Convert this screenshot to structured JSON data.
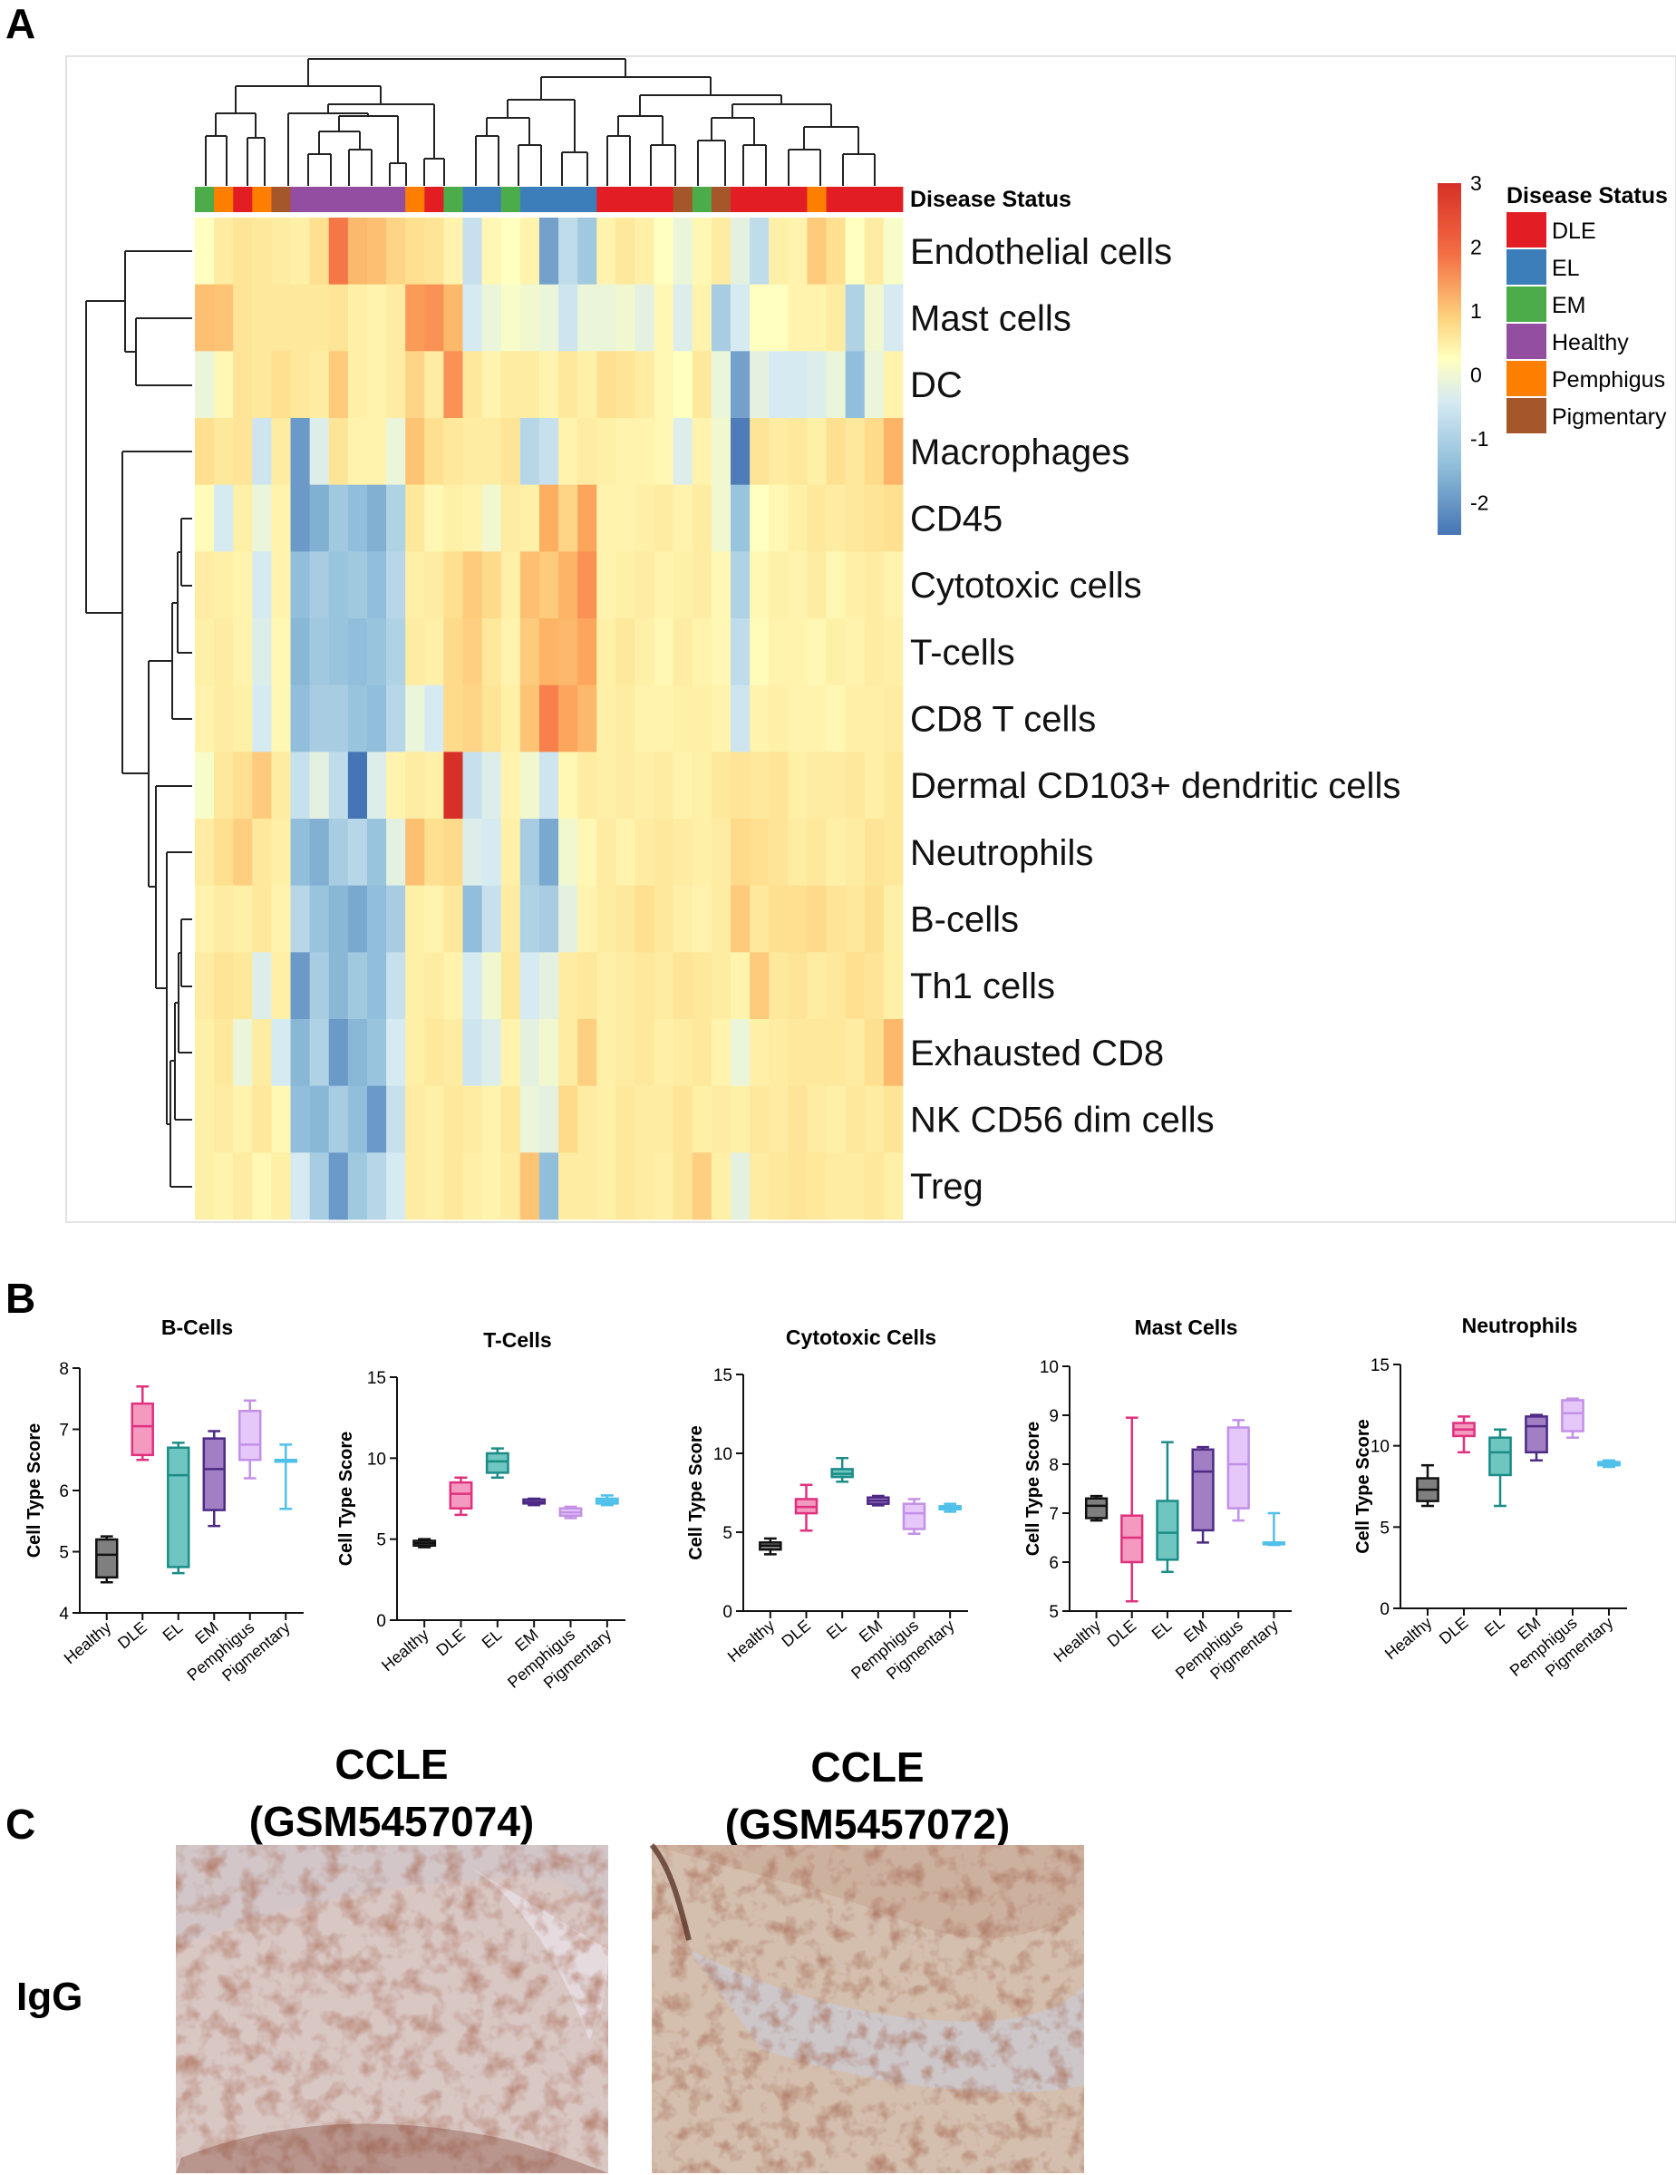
{
  "panels": {
    "a": "A",
    "b": "B",
    "c": "C"
  },
  "chart_data": [
    {
      "type": "heatmap",
      "annotation_label": "Disease Status",
      "rows": [
        "Endothelial cells",
        "Mast cells",
        "DC",
        "Macrophages",
        "CD45",
        "Cytotoxic cells",
        "T-cells",
        "CD8 T cells",
        "Dermal CD103+ dendritic cells",
        "Neutrophils",
        "B-cells",
        "Th1 cells",
        "Exhausted CD8",
        "NK CD56 dim cells",
        "Treg"
      ],
      "column_groups": [
        "EM",
        "Pemphigus",
        "DLE",
        "Pemphigus",
        "Pigmentary",
        "Healthy",
        "Healthy",
        "Healthy",
        "Healthy",
        "Healthy",
        "Healthy",
        "Pemphigus",
        "DLE",
        "EM",
        "EL",
        "EL",
        "EM",
        "EL",
        "EL",
        "EL",
        "EL",
        "DLE",
        "DLE",
        "DLE",
        "DLE",
        "Pigmentary",
        "EM",
        "Pigmentary",
        "DLE",
        "DLE",
        "DLE",
        "DLE",
        "Pemphigus",
        "DLE",
        "DLE",
        "DLE",
        "DLE"
      ],
      "values": [
        [
          0,
          0.5,
          0.7,
          0.6,
          0.5,
          0.4,
          0.8,
          2.3,
          1.5,
          1.4,
          1,
          0.8,
          0.7,
          0.3,
          -0.8,
          0.2,
          0,
          0.3,
          -1.9,
          -0.9,
          -1.3,
          0.3,
          0.6,
          0.4,
          0,
          -0.3,
          0.2,
          0.5,
          -0.4,
          -0.9,
          0.4,
          0.3,
          1.2,
          0.8,
          0,
          0.5,
          -0.1
        ],
        [
          1.4,
          1.3,
          0.7,
          0.6,
          0.6,
          0.6,
          0.6,
          0.7,
          0.4,
          0.3,
          0.5,
          1.9,
          2,
          1.5,
          -0.6,
          -0.3,
          -0.1,
          -0.2,
          -0.3,
          -0.7,
          -0.3,
          -0.3,
          -0.2,
          -0.4,
          0.2,
          -0.5,
          0.3,
          -1.2,
          -0.6,
          0,
          0,
          0.3,
          0.3,
          0.5,
          -1.1,
          -0.2,
          -0.6
        ],
        [
          -0.3,
          0.2,
          0.7,
          0.6,
          0.8,
          0.6,
          0.5,
          1.2,
          0.4,
          0.3,
          0.5,
          1,
          0.5,
          2,
          0.6,
          0.3,
          0.5,
          0.5,
          0.3,
          0.6,
          0.4,
          0.8,
          0.7,
          0.5,
          0.2,
          0,
          0.6,
          -0.3,
          -1.9,
          -0.4,
          -0.6,
          -0.6,
          -0.5,
          -0.3,
          -1.5,
          -0.3,
          0.3
        ],
        [
          0.8,
          0.6,
          0.7,
          -0.7,
          0.5,
          -2,
          -0.5,
          0.7,
          0.3,
          0.3,
          -0.3,
          1.3,
          0.8,
          0.6,
          0.5,
          0.5,
          0.7,
          -1,
          -0.8,
          0.3,
          0.5,
          0.4,
          0.3,
          0.3,
          0.2,
          -0.5,
          0.3,
          -0.2,
          -2.4,
          0.7,
          0.5,
          0.6,
          0.4,
          0.8,
          0.6,
          0.9,
          1.6
        ],
        [
          0.1,
          -0.6,
          0.4,
          -0.3,
          0.3,
          -2,
          -1.7,
          -1.3,
          -1.5,
          -1.7,
          -1.1,
          0.6,
          0.2,
          0.4,
          0.3,
          -0.2,
          0.5,
          0.4,
          1.7,
          1,
          1.8,
          0.3,
          0.3,
          0.4,
          0.5,
          0.3,
          0.5,
          -0.2,
          -1.4,
          0,
          0.2,
          0.4,
          0.6,
          0.5,
          0.6,
          0.7,
          0.8
        ],
        [
          0.5,
          0.4,
          0.3,
          -0.6,
          0.3,
          -1.5,
          -1.2,
          -1.4,
          -1.3,
          -1.5,
          -1,
          0.4,
          0.5,
          0.8,
          1.2,
          0.9,
          0.4,
          1.4,
          1.2,
          1.6,
          2,
          0.3,
          0.4,
          0.5,
          0.3,
          0.4,
          0.5,
          0.2,
          -1.1,
          0.2,
          0.4,
          0.3,
          0.5,
          0.2,
          0.4,
          0.5,
          0.3
        ],
        [
          0.4,
          0.5,
          0.3,
          -0.5,
          0.2,
          -1.6,
          -1.3,
          -1.4,
          -1.5,
          -1.4,
          -1.1,
          0.5,
          0.4,
          0.9,
          1.1,
          0.6,
          0.3,
          1.2,
          1.6,
          1.5,
          1.8,
          0.4,
          0.6,
          0.4,
          0.2,
          0.5,
          0.3,
          0.2,
          -0.9,
          0.1,
          0.3,
          0.3,
          0.2,
          0.4,
          0.3,
          0.5,
          0.4
        ],
        [
          0.3,
          0.5,
          0.4,
          -0.6,
          0.2,
          -1.5,
          -1.2,
          -1.2,
          -1.4,
          -1.5,
          -1,
          -0.3,
          -0.6,
          0.9,
          1,
          0.7,
          0.4,
          1.3,
          2.2,
          1.8,
          1.5,
          0.4,
          0.5,
          0.3,
          0.3,
          0.4,
          0.4,
          0.3,
          -0.7,
          0.3,
          0.4,
          0.3,
          0.3,
          0.2,
          0.4,
          0.4,
          0.5
        ],
        [
          -0.1,
          0.6,
          0.8,
          1.2,
          0.5,
          -0.8,
          -0.4,
          -0.9,
          -2.5,
          -0.5,
          0.3,
          0.5,
          0.4,
          3,
          -0.8,
          -0.5,
          0.3,
          -0.2,
          -0.7,
          0.2,
          0.5,
          0.4,
          0.5,
          0.4,
          0.5,
          0.3,
          0.4,
          0.6,
          0.7,
          0.6,
          0.7,
          0.4,
          0.5,
          0.5,
          0.6,
          0.4,
          0.6
        ],
        [
          0.5,
          0.8,
          1.1,
          0.6,
          0.4,
          -1.5,
          -1.7,
          -1.2,
          -1,
          -1.4,
          -0.4,
          1.4,
          0.8,
          0.9,
          -0.5,
          -0.6,
          0.4,
          -1.2,
          -1.8,
          -0.2,
          0.2,
          0.5,
          0.3,
          0.5,
          0.6,
          0.5,
          0.4,
          0.5,
          0.9,
          0.8,
          0.7,
          0.5,
          0.6,
          0.4,
          0.5,
          0.7,
          0.6
        ],
        [
          0.3,
          0.5,
          0.4,
          0.6,
          0.3,
          -1,
          -1.4,
          -1.6,
          -1.8,
          -1.5,
          -1.2,
          0.4,
          0.3,
          0.6,
          -1.5,
          -0.8,
          0.5,
          -1.1,
          -1.2,
          -0.4,
          0.3,
          0.5,
          0.6,
          0.8,
          0.6,
          0.4,
          0.3,
          0.5,
          1.2,
          0.6,
          0.8,
          0.8,
          0.9,
          0.7,
          0.6,
          0.8,
          0.4
        ],
        [
          0.5,
          0.7,
          0.6,
          -0.5,
          0.4,
          -2,
          -1.2,
          -1.6,
          -1.3,
          -1.5,
          -0.8,
          0.4,
          0.5,
          0.3,
          -0.6,
          -0.2,
          0.6,
          -0.6,
          -0.4,
          0.5,
          0.6,
          0.4,
          0.5,
          0.6,
          0.5,
          0.7,
          0.6,
          0.5,
          0.3,
          1.2,
          0.6,
          0.7,
          0.5,
          0.6,
          0.8,
          0.7,
          0.4
        ],
        [
          0.4,
          0.6,
          -0.3,
          0.5,
          -0.6,
          -1.6,
          -1.1,
          -2,
          -1.6,
          -1.4,
          -0.6,
          0.4,
          0.6,
          0.5,
          -0.7,
          -0.5,
          0.3,
          -0.4,
          -0.2,
          0.5,
          1.1,
          0.4,
          0.5,
          0.6,
          0.4,
          0.5,
          0.6,
          0.3,
          -0.3,
          0.4,
          0.5,
          0.6,
          0.6,
          0.6,
          0.5,
          0.8,
          1.5
        ],
        [
          0.4,
          0.5,
          0.3,
          0.6,
          0.2,
          -1.5,
          -1.6,
          -1.2,
          -1.5,
          -2,
          -0.8,
          0.5,
          0.4,
          0.6,
          0.5,
          0.3,
          0.6,
          -0.3,
          -0.4,
          0.9,
          0.5,
          0.4,
          0.6,
          0.5,
          0.5,
          0.7,
          0.4,
          0.5,
          0.4,
          0.6,
          0.5,
          0.7,
          0.5,
          0.4,
          0.6,
          0.5,
          0.7
        ],
        [
          0.4,
          0.3,
          0.5,
          0.2,
          0.4,
          -0.6,
          -1.2,
          -2,
          -1.3,
          -1,
          -0.6,
          0.5,
          0.4,
          0.6,
          0.4,
          0.3,
          0.5,
          1.3,
          -1.5,
          0.5,
          0.5,
          0.4,
          0.6,
          0.5,
          0.4,
          0.7,
          1.1,
          0.4,
          -0.4,
          0.5,
          0.6,
          0.7,
          0.6,
          0.5,
          0.5,
          0.6,
          0.4
        ]
      ],
      "color_scale": {
        "min": -2.5,
        "max": 3,
        "ticks": [
          "3",
          "2",
          "1",
          "0",
          "-1",
          "-2"
        ]
      },
      "legend": {
        "title": "Disease Status",
        "items": [
          {
            "label": "DLE",
            "color": "#e21e24"
          },
          {
            "label": "EL",
            "color": "#3c7eba"
          },
          {
            "label": "EM",
            "color": "#4cac4a"
          },
          {
            "label": "Healthy",
            "color": "#944ea1"
          },
          {
            "label": "Pemphigus",
            "color": "#fe7f00"
          },
          {
            "label": "Pigmentary",
            "color": "#a6562b"
          }
        ]
      }
    },
    {
      "type": "box",
      "title": "B-Cells",
      "ylabel": "Cell Type Score",
      "ylim": [
        4,
        8
      ],
      "yticks": [
        "4",
        "5",
        "6",
        "7",
        "8"
      ],
      "categories": [
        "Healthy",
        "DLE",
        "EL",
        "EM",
        "Pemphigus",
        "Pigmentary"
      ],
      "boxes": [
        {
          "min": 4.5,
          "q1": 4.58,
          "median": 4.95,
          "q3": 5.2,
          "max": 5.25,
          "color": "#7f7f7f",
          "edge": "#111111"
        },
        {
          "min": 6.5,
          "q1": 6.58,
          "median": 7.05,
          "q3": 7.42,
          "max": 7.7,
          "color": "#f49ac0",
          "edge": "#e0307e"
        },
        {
          "min": 4.65,
          "q1": 4.75,
          "median": 6.25,
          "q3": 6.7,
          "max": 6.78,
          "color": "#6fc6c0",
          "edge": "#1c8c88"
        },
        {
          "min": 5.42,
          "q1": 5.68,
          "median": 6.35,
          "q3": 6.85,
          "max": 6.97,
          "color": "#a27fc5",
          "edge": "#4d2a85"
        },
        {
          "min": 6.2,
          "q1": 6.5,
          "median": 6.75,
          "q3": 7.3,
          "max": 7.47,
          "color": "#e5c8f9",
          "edge": "#c390e8"
        },
        {
          "min": 5.7,
          "q1": 6.5,
          "median": 6.5,
          "q3": 6.5,
          "max": 6.75,
          "color": "#8ad8f2",
          "edge": "#4fc0ea"
        }
      ]
    },
    {
      "type": "box",
      "title": "T-Cells",
      "ylabel": "Cell Type Score",
      "ylim": [
        0,
        15
      ],
      "yticks": [
        "0",
        "5",
        "10",
        "15"
      ],
      "categories": [
        "Healthy",
        "DLE",
        "EL",
        "EM",
        "Pemphigus",
        "Pigmentary"
      ],
      "boxes": [
        {
          "min": 4.5,
          "q1": 4.6,
          "median": 4.75,
          "q3": 4.9,
          "max": 5,
          "color": "#7f7f7f",
          "edge": "#111111"
        },
        {
          "min": 6.5,
          "q1": 6.9,
          "median": 7.8,
          "q3": 8.5,
          "max": 8.8,
          "color": "#f49ac0",
          "edge": "#e0307e"
        },
        {
          "min": 8.8,
          "q1": 9.1,
          "median": 9.8,
          "q3": 10.3,
          "max": 10.6,
          "color": "#6fc6c0",
          "edge": "#1c8c88"
        },
        {
          "min": 7.1,
          "q1": 7.2,
          "median": 7.3,
          "q3": 7.45,
          "max": 7.5,
          "color": "#a27fc5",
          "edge": "#4d2a85"
        },
        {
          "min": 6.3,
          "q1": 6.45,
          "median": 6.65,
          "q3": 6.9,
          "max": 7,
          "color": "#e5c8f9",
          "edge": "#c390e8"
        },
        {
          "min": 7.1,
          "q1": 7.2,
          "median": 7.35,
          "q3": 7.5,
          "max": 7.7,
          "color": "#8ad8f2",
          "edge": "#4fc0ea"
        }
      ]
    },
    {
      "type": "box",
      "title": "Cytotoxic Cells",
      "ylabel": "Cell Type Score",
      "ylim": [
        0,
        15
      ],
      "yticks": [
        "0",
        "5",
        "10",
        "15"
      ],
      "categories": [
        "Healthy",
        "DLE",
        "EL",
        "EM",
        "Pemphigus",
        "Pigmentary"
      ],
      "boxes": [
        {
          "min": 3.6,
          "q1": 3.9,
          "median": 4.15,
          "q3": 4.35,
          "max": 4.6,
          "color": "#7f7f7f",
          "edge": "#111111"
        },
        {
          "min": 5.1,
          "q1": 6.2,
          "median": 6.6,
          "q3": 7.1,
          "max": 8,
          "color": "#f49ac0",
          "edge": "#e0307e"
        },
        {
          "min": 8.2,
          "q1": 8.5,
          "median": 8.7,
          "q3": 9,
          "max": 9.7,
          "color": "#6fc6c0",
          "edge": "#1c8c88"
        },
        {
          "min": 6.7,
          "q1": 6.8,
          "median": 7,
          "q3": 7.2,
          "max": 7.3,
          "color": "#a27fc5",
          "edge": "#4d2a85"
        },
        {
          "min": 4.9,
          "q1": 5.2,
          "median": 6.2,
          "q3": 6.8,
          "max": 7.1,
          "color": "#e5c8f9",
          "edge": "#c390e8"
        },
        {
          "min": 6.3,
          "q1": 6.45,
          "median": 6.55,
          "q3": 6.65,
          "max": 6.8,
          "color": "#8ad8f2",
          "edge": "#4fc0ea"
        }
      ]
    },
    {
      "type": "box",
      "title": "Mast Cells",
      "ylabel": "Cell Type Score",
      "ylim": [
        5,
        10
      ],
      "yticks": [
        "5",
        "6",
        "7",
        "8",
        "9",
        "10"
      ],
      "categories": [
        "Healthy",
        "DLE",
        "EL",
        "EM",
        "Pemphigus",
        "Pigmentary"
      ],
      "boxes": [
        {
          "min": 6.85,
          "q1": 6.9,
          "median": 7.15,
          "q3": 7.3,
          "max": 7.35,
          "color": "#7f7f7f",
          "edge": "#111111"
        },
        {
          "min": 5.2,
          "q1": 6,
          "median": 6.5,
          "q3": 6.95,
          "max": 8.95,
          "color": "#f49ac0",
          "edge": "#e0307e"
        },
        {
          "min": 5.8,
          "q1": 6.05,
          "median": 6.6,
          "q3": 7.25,
          "max": 8.45,
          "color": "#6fc6c0",
          "edge": "#1c8c88"
        },
        {
          "min": 6.4,
          "q1": 6.65,
          "median": 7.85,
          "q3": 8.3,
          "max": 8.35,
          "color": "#a27fc5",
          "edge": "#4d2a85"
        },
        {
          "min": 6.85,
          "q1": 7.1,
          "median": 8,
          "q3": 8.75,
          "max": 8.9,
          "color": "#e5c8f9",
          "edge": "#c390e8"
        },
        {
          "min": 6.35,
          "q1": 6.4,
          "median": 6.4,
          "q3": 6.4,
          "max": 7,
          "color": "#8ad8f2",
          "edge": "#4fc0ea"
        }
      ]
    },
    {
      "type": "box",
      "title": "Neutrophils",
      "ylabel": "Cell Type Score",
      "ylim": [
        0,
        15
      ],
      "yticks": [
        "0",
        "5",
        "10",
        "15"
      ],
      "categories": [
        "Healthy",
        "DLE",
        "EL",
        "EM",
        "Pemphigus",
        "Pigmentary"
      ],
      "boxes": [
        {
          "min": 6.3,
          "q1": 6.6,
          "median": 7.3,
          "q3": 8,
          "max": 8.8,
          "color": "#7f7f7f",
          "edge": "#111111"
        },
        {
          "min": 9.6,
          "q1": 10.6,
          "median": 11,
          "q3": 11.4,
          "max": 11.8,
          "color": "#f49ac0",
          "edge": "#e0307e"
        },
        {
          "min": 6.3,
          "q1": 8.2,
          "median": 9.6,
          "q3": 10.5,
          "max": 11,
          "color": "#6fc6c0",
          "edge": "#1c8c88"
        },
        {
          "min": 9.1,
          "q1": 9.6,
          "median": 11.2,
          "q3": 11.8,
          "max": 11.9,
          "color": "#a27fc5",
          "edge": "#4d2a85"
        },
        {
          "min": 10.5,
          "q1": 10.9,
          "median": 12,
          "q3": 12.8,
          "max": 12.9,
          "color": "#e5c8f9",
          "edge": "#c390e8"
        },
        {
          "min": 8.7,
          "q1": 8.8,
          "median": 8.9,
          "q3": 9,
          "max": 9.1,
          "color": "#8ad8f2",
          "edge": "#4fc0ea"
        }
      ]
    }
  ],
  "images": [
    {
      "title_line1": "CCLE",
      "title_line2": "(GSM5457074)"
    },
    {
      "title_line1": "CCLE",
      "title_line2": "(GSM5457072)"
    }
  ],
  "row_label": "IgG"
}
